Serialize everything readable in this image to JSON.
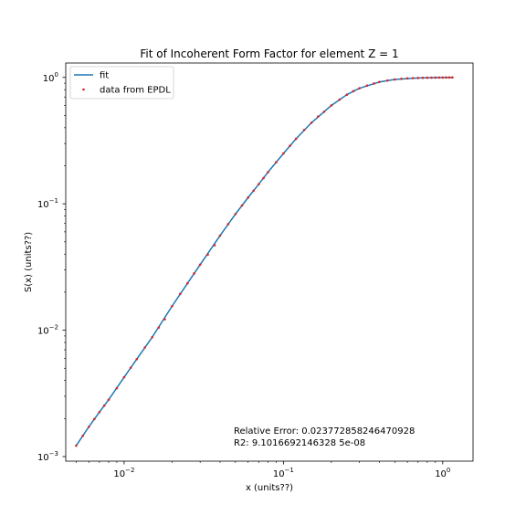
{
  "chart_data": {
    "type": "line",
    "title": "Fit of Incoherent Form Factor for element Z = 1",
    "xlabel": "x (units??)",
    "ylabel": "S(x) (units??)",
    "xscale": "log",
    "yscale": "log",
    "xlim": [
      0.0043,
      1.55
    ],
    "ylim": [
      0.00092,
      1.3
    ],
    "xticks": [
      {
        "value": 0.01,
        "base": "10",
        "exp": "−2"
      },
      {
        "value": 0.1,
        "base": "10",
        "exp": "−1"
      },
      {
        "value": 1,
        "base": "10",
        "exp": "0"
      }
    ],
    "yticks": [
      {
        "value": 0.001,
        "base": "10",
        "exp": "−3"
      },
      {
        "value": 0.01,
        "base": "10",
        "exp": "−2"
      },
      {
        "value": 0.1,
        "base": "10",
        "exp": "−1"
      },
      {
        "value": 1,
        "base": "10",
        "exp": "0"
      }
    ],
    "grid": false,
    "legend_position": "top-left",
    "series": [
      {
        "name": "fit",
        "style": "line",
        "color": "#1f77b4",
        "x": [
          0.005,
          0.006,
          0.007,
          0.008,
          0.01,
          0.012,
          0.015,
          0.02,
          0.025,
          0.03,
          0.04,
          0.05,
          0.06,
          0.07,
          0.08,
          0.1,
          0.12,
          0.15,
          0.2,
          0.25,
          0.3,
          0.4,
          0.5,
          0.7,
          1.0,
          1.15
        ],
        "y": [
          0.00122,
          0.00172,
          0.00225,
          0.00282,
          0.00425,
          0.0059,
          0.0088,
          0.0155,
          0.0235,
          0.033,
          0.056,
          0.083,
          0.112,
          0.143,
          0.178,
          0.25,
          0.327,
          0.438,
          0.6,
          0.73,
          0.82,
          0.92,
          0.963,
          0.99,
          0.998,
          0.999
        ]
      },
      {
        "name": "data from EPDL",
        "style": "scatter",
        "color": "#d62728",
        "x": [
          0.005,
          0.0055,
          0.006,
          0.0065,
          0.007,
          0.0075,
          0.008,
          0.009,
          0.01,
          0.011,
          0.012,
          0.0135,
          0.015,
          0.0165,
          0.018,
          0.02,
          0.0225,
          0.025,
          0.0275,
          0.03,
          0.0335,
          0.037,
          0.04,
          0.045,
          0.05,
          0.055,
          0.06,
          0.065,
          0.07,
          0.075,
          0.08,
          0.09,
          0.1,
          0.11,
          0.12,
          0.135,
          0.15,
          0.165,
          0.18,
          0.2,
          0.225,
          0.25,
          0.275,
          0.3,
          0.335,
          0.37,
          0.4,
          0.45,
          0.5,
          0.55,
          0.6,
          0.65,
          0.7,
          0.75,
          0.8,
          0.85,
          0.9,
          0.95,
          1.0,
          1.05,
          1.1,
          1.15
        ],
        "y": [
          0.00122,
          0.00146,
          0.00172,
          0.00198,
          0.00225,
          0.00253,
          0.00282,
          0.00348,
          0.00425,
          0.00505,
          0.0059,
          0.0073,
          0.0088,
          0.0105,
          0.0122,
          0.0155,
          0.0194,
          0.0235,
          0.0281,
          0.033,
          0.0396,
          0.047,
          0.056,
          0.069,
          0.083,
          0.097,
          0.112,
          0.127,
          0.143,
          0.16,
          0.178,
          0.213,
          0.25,
          0.288,
          0.327,
          0.384,
          0.438,
          0.49,
          0.535,
          0.6,
          0.667,
          0.73,
          0.778,
          0.82,
          0.862,
          0.895,
          0.92,
          0.945,
          0.963,
          0.975,
          0.983,
          0.988,
          0.99,
          0.993,
          0.995,
          0.996,
          0.997,
          0.998,
          0.998,
          0.999,
          0.999,
          0.999
        ]
      }
    ],
    "annotations": [
      {
        "text": "Relative Error: 0.023772858246470928"
      },
      {
        "text": "R2: 9.1016692146328 5e-08"
      }
    ]
  }
}
